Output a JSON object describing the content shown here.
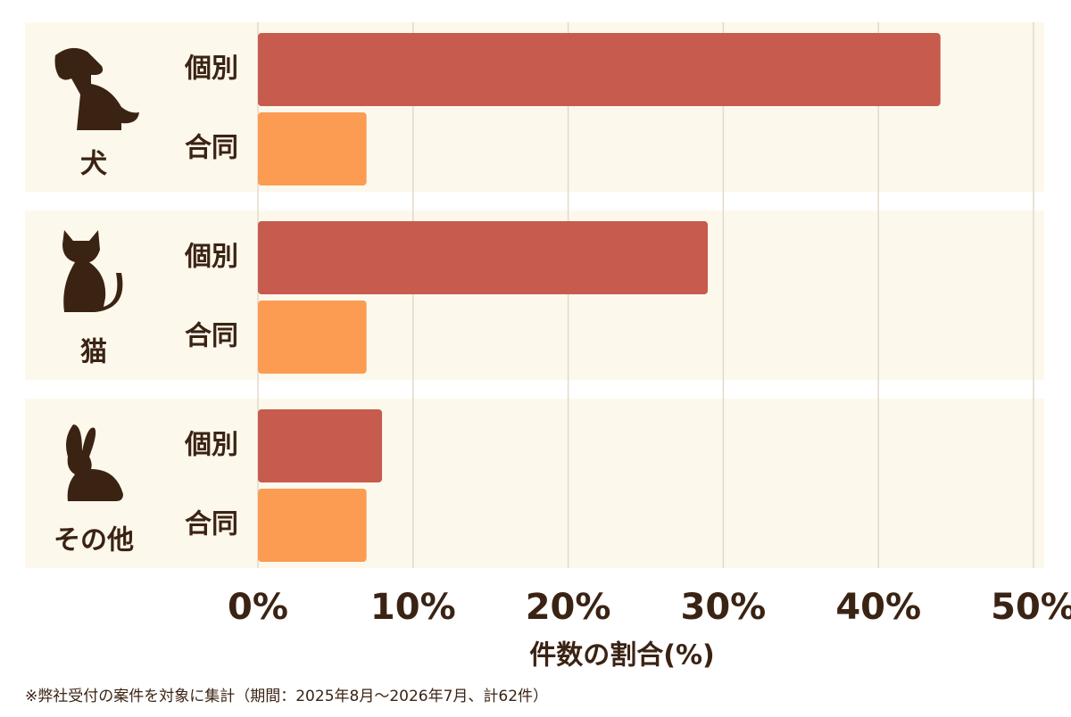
{
  "chart_data": {
    "type": "bar",
    "orientation": "horizontal",
    "categories": [
      "犬",
      "猫",
      "その他"
    ],
    "series": [
      {
        "name": "個別",
        "color": "#c75b4e",
        "values": [
          44,
          29,
          8
        ]
      },
      {
        "name": "合同",
        "color": "#fb9c52",
        "values": [
          7,
          7,
          7
        ]
      }
    ],
    "xlim": [
      0,
      50
    ],
    "xticks": [
      {
        "value": 0,
        "label": "0%"
      },
      {
        "value": 10,
        "label": "10%"
      },
      {
        "value": 20,
        "label": "20%"
      },
      {
        "value": 30,
        "label": "30%"
      },
      {
        "value": 40,
        "label": "40%"
      },
      {
        "value": 50,
        "label": "50%"
      }
    ],
    "xlabel": "件数の割合(%)",
    "grid": true,
    "panel_color": "#fdf8ec",
    "note": "※弊社受付の案件を対象に集計（期間：2025年8月～2026年7月、計62件）"
  }
}
